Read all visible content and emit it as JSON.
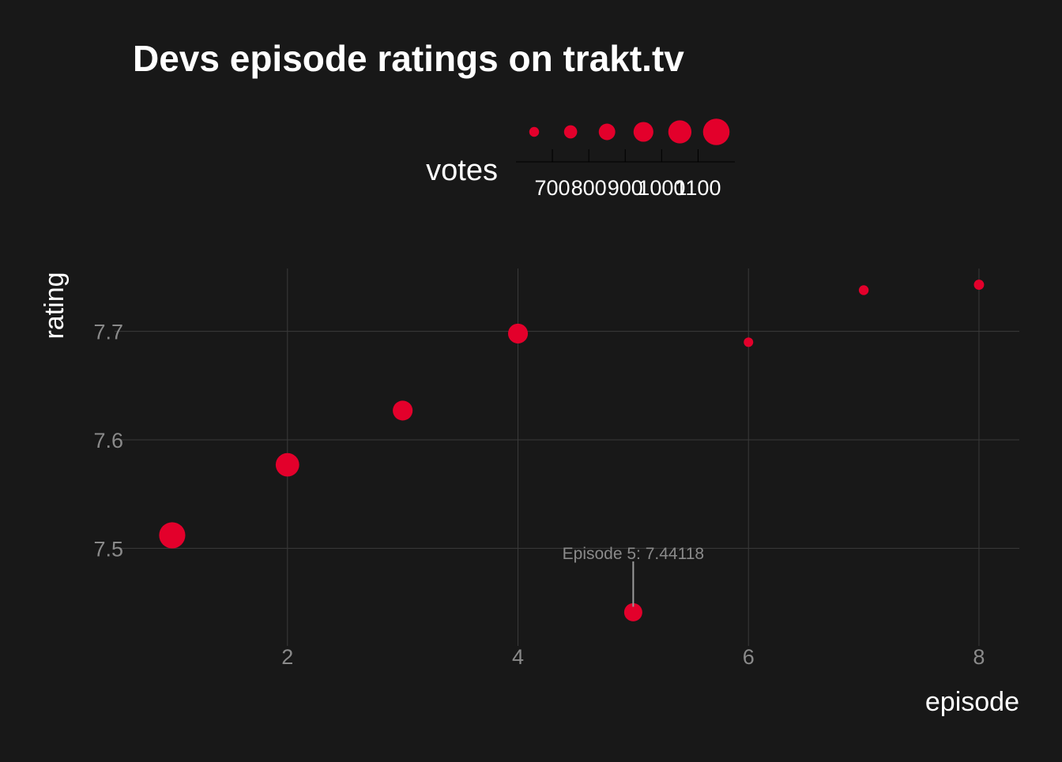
{
  "colors": {
    "background": "#181818",
    "point": "#e3002b",
    "title": "#ffffff",
    "axis_text": "#8a8a8a",
    "grid": "#3a3a3a",
    "annotation": "#8a8a8a"
  },
  "chart_data": {
    "type": "scatter",
    "title": "Devs episode ratings on trakt.tv",
    "xlabel": "episode",
    "ylabel": "rating",
    "xlim": [
      0.5,
      8.35
    ],
    "ylim": [
      7.41,
      7.758
    ],
    "x_ticks": [
      2,
      4,
      6,
      8
    ],
    "y_ticks": [
      7.5,
      7.6,
      7.7
    ],
    "x_tick_labels": [
      "2",
      "4",
      "6",
      "8"
    ],
    "y_tick_labels": [
      "7.5",
      "7.6",
      "7.7"
    ],
    "grid": true,
    "legend": {
      "title": "votes",
      "placement": "top",
      "breaks": [
        700,
        800,
        900,
        1000,
        1100
      ],
      "break_labels": [
        "700",
        "800",
        "900",
        "1000",
        "1100"
      ],
      "keys": [
        650,
        750,
        850,
        950,
        1050,
        1150
      ]
    },
    "size_range": [
      640,
      1160
    ],
    "series": [
      {
        "x": [
          1,
          2,
          3,
          4,
          5,
          6,
          7,
          8
        ],
        "y": [
          7.512,
          7.577,
          7.627,
          7.698,
          7.441,
          7.69,
          7.738,
          7.743
        ],
        "votes": [
          1140,
          1060,
          950,
          950,
          900,
          640,
          650,
          660
        ]
      }
    ],
    "annotations": [
      {
        "x": 5,
        "y": 7.441,
        "text": "Episode 5: 7.44118"
      }
    ]
  }
}
